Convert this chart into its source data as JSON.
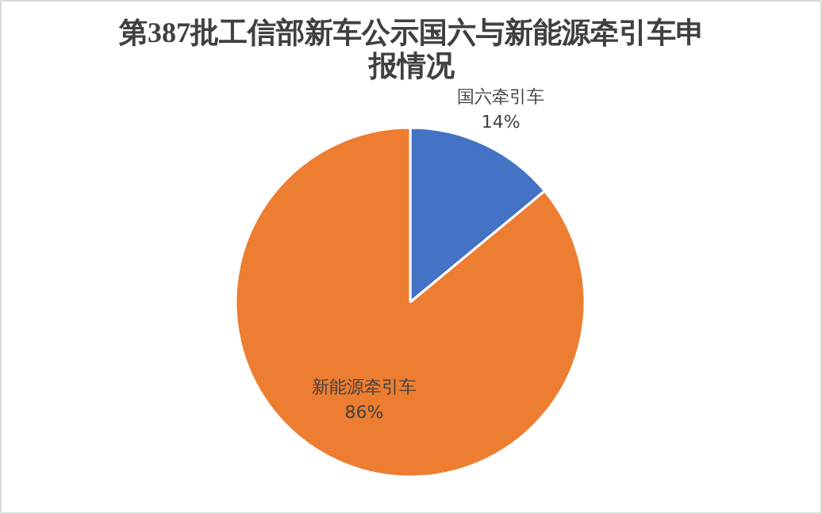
{
  "chart_data": {
    "type": "pie",
    "title": "第387批工信部新车公示国六与新能源牵引车申报情况",
    "categories": [
      "国六牵引车",
      "新能源牵引车"
    ],
    "values": [
      14,
      86
    ],
    "colors": [
      "#4472c4",
      "#ed7d31"
    ],
    "value_labels": [
      "14%",
      "86%"
    ]
  }
}
